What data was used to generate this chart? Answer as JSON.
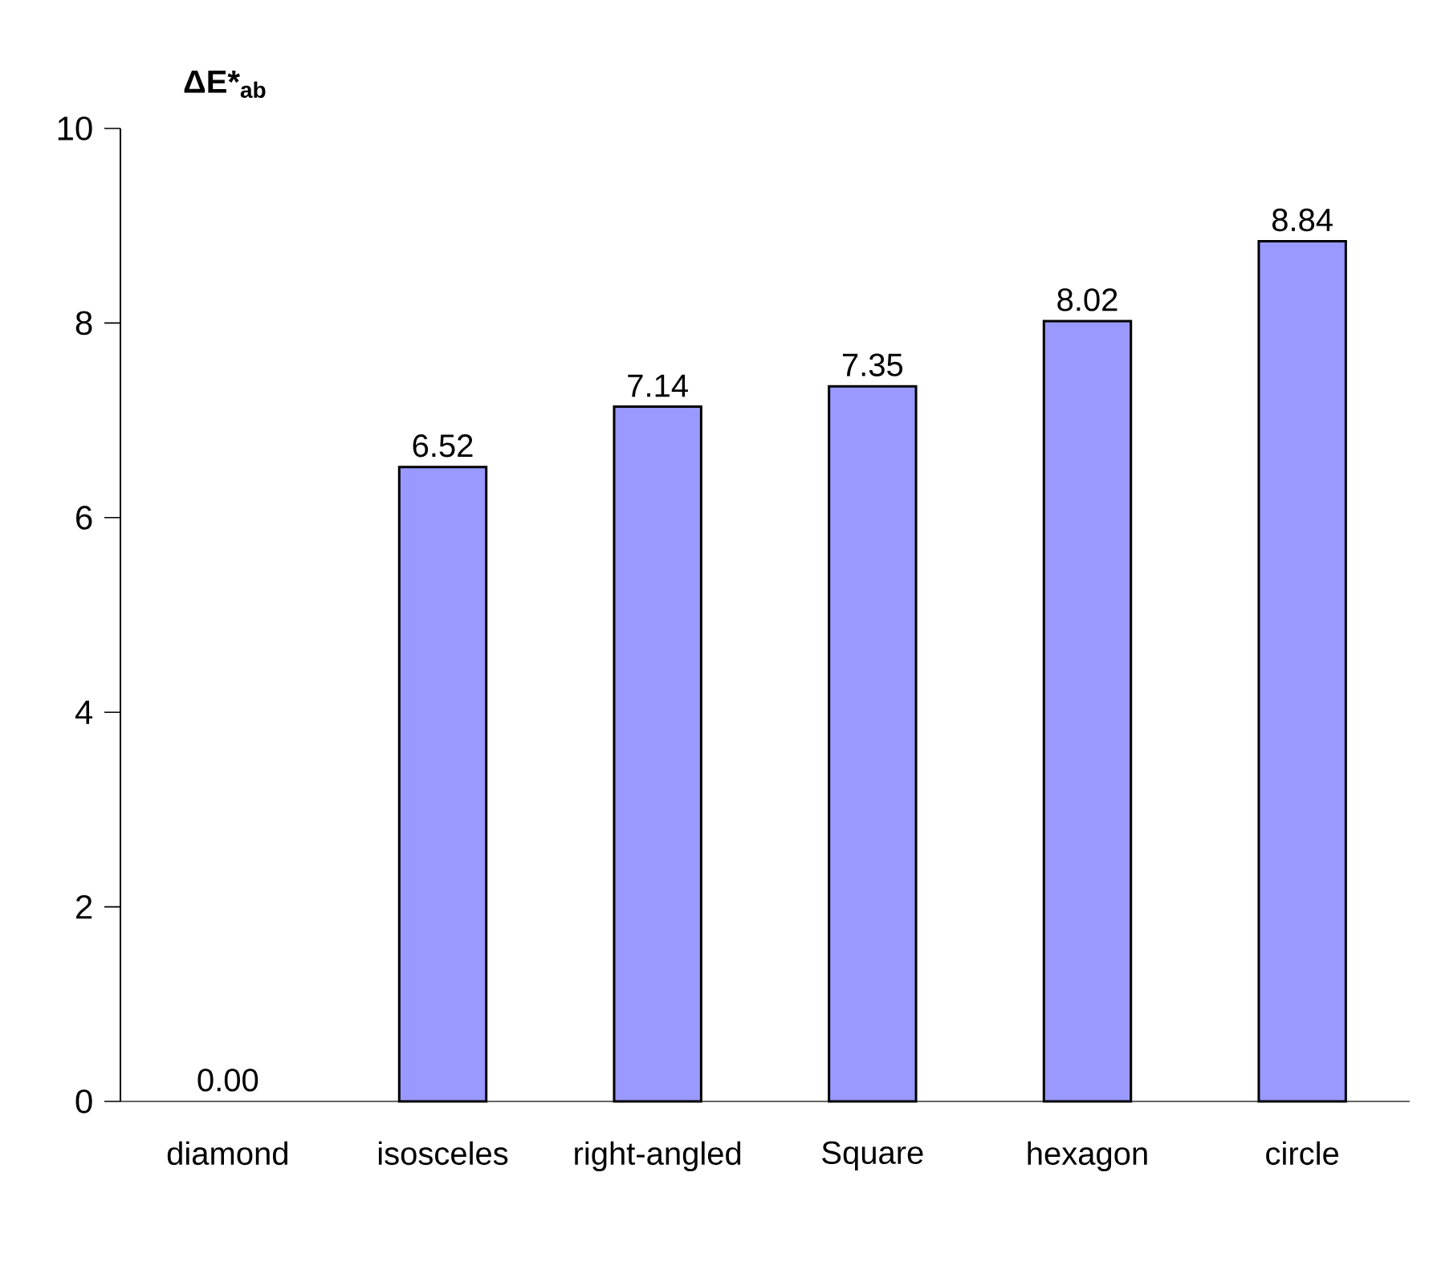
{
  "chart_data": {
    "type": "bar",
    "ylabel": "ΔE*$_{ab}$",
    "categories": [
      "diamond",
      "isosceles",
      "right-angled",
      "Square",
      "hexagon",
      "circle"
    ],
    "values": [
      0.0,
      6.52,
      7.14,
      7.35,
      8.02,
      8.84
    ],
    "value_labels": [
      "0.00",
      "6.52",
      "7.14",
      "7.35",
      "8.02",
      "8.84"
    ],
    "color": "#9999ff",
    "ylim": [
      0,
      10
    ],
    "yticks": [
      0,
      2,
      4,
      6,
      8,
      10
    ]
  }
}
